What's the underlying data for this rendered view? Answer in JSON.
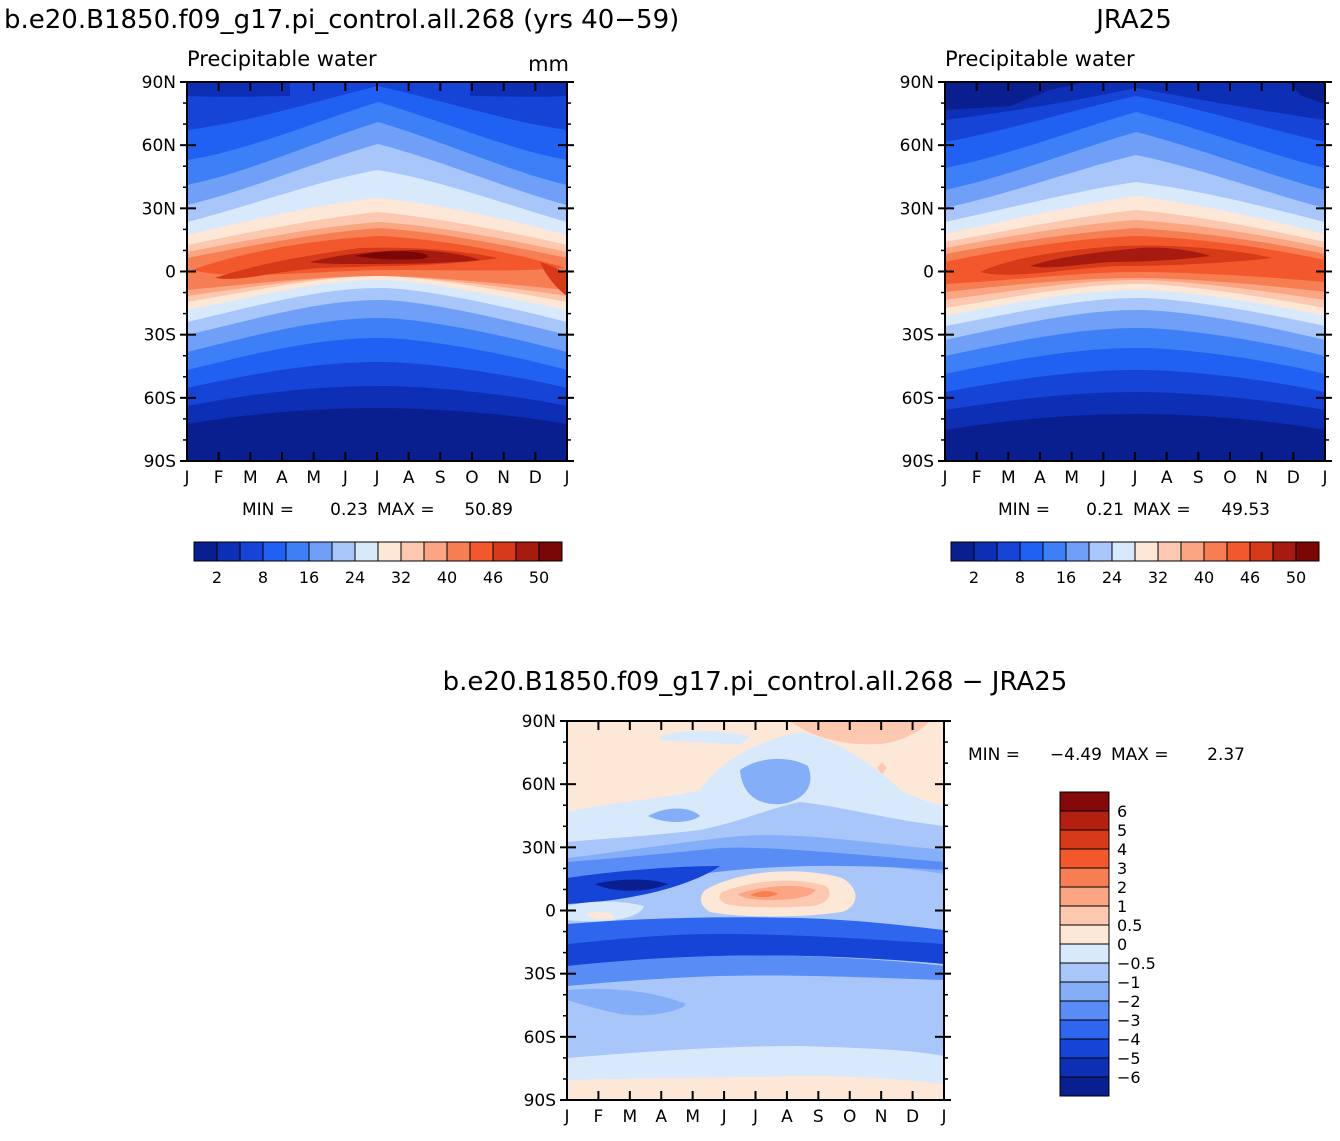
{
  "chart_data": [
    {
      "type": "heatmap",
      "title": "b.e20.B1850.f09_g17.pi_control.all.268 (yrs 40−59)",
      "subtitle": "Precipitable water",
      "units": "mm",
      "x_ticks": [
        "J",
        "F",
        "M",
        "A",
        "M",
        "J",
        "J",
        "A",
        "S",
        "O",
        "N",
        "D",
        "J"
      ],
      "y_ticks": [
        "90N",
        "60N",
        "30N",
        "0",
        "30S",
        "60S",
        "90S"
      ],
      "stats": {
        "min_label": "MIN =",
        "min": "0.23",
        "max_label": "MAX =",
        "max": "50.89"
      },
      "colorbar": {
        "orientation": "horizontal",
        "colors": [
          "#0a1f8f",
          "#0d2fb5",
          "#1544d6",
          "#2060f2",
          "#3d7ff7",
          "#6f9ff7",
          "#a8c6f9",
          "#d9e9fc",
          "#fde7d6",
          "#fcc8b0",
          "#fba583",
          "#f77e52",
          "#f2582c",
          "#d63a18",
          "#a61a10",
          "#7a0606"
        ],
        "labels": [
          "2",
          "8",
          "16",
          "24",
          "32",
          "40",
          "46",
          "50"
        ]
      }
    },
    {
      "type": "heatmap",
      "title": "JRA25",
      "subtitle": "Precipitable water",
      "x_ticks": [
        "J",
        "F",
        "M",
        "A",
        "M",
        "J",
        "J",
        "A",
        "S",
        "O",
        "N",
        "D",
        "J"
      ],
      "y_ticks": [
        "90N",
        "60N",
        "30N",
        "0",
        "30S",
        "60S",
        "90S"
      ],
      "stats": {
        "min_label": "MIN =",
        "min": "0.21",
        "max_label": "MAX =",
        "max": "49.53"
      },
      "colorbar": {
        "orientation": "horizontal",
        "colors": [
          "#0a1f8f",
          "#0d2fb5",
          "#1544d6",
          "#2060f2",
          "#3d7ff7",
          "#6f9ff7",
          "#a8c6f9",
          "#d9e9fc",
          "#fde7d6",
          "#fcc8b0",
          "#fba583",
          "#f77e52",
          "#f2582c",
          "#d63a18",
          "#a61a10",
          "#7a0606"
        ],
        "labels": [
          "2",
          "8",
          "16",
          "24",
          "32",
          "40",
          "46",
          "50"
        ]
      }
    },
    {
      "type": "heatmap",
      "title": "b.e20.B1850.f09_g17.pi_control.all.268 − JRA25",
      "x_ticks": [
        "J",
        "F",
        "M",
        "A",
        "M",
        "J",
        "J",
        "A",
        "S",
        "O",
        "N",
        "D",
        "J"
      ],
      "y_ticks": [
        "90N",
        "60N",
        "30N",
        "0",
        "30S",
        "60S",
        "90S"
      ],
      "stats": {
        "min_label": "MIN =",
        "min": "−4.49",
        "max_label": "MAX =",
        "max": "2.37"
      },
      "colorbar": {
        "orientation": "vertical",
        "colors": [
          "#840a0a",
          "#b3200f",
          "#d63a18",
          "#f2582c",
          "#f77e52",
          "#fba583",
          "#fcc8b0",
          "#fde7d6",
          "#d9e9fc",
          "#a8c6f9",
          "#85aef8",
          "#5a8cf5",
          "#2e66ee",
          "#1544d6",
          "#0d2fb5",
          "#0a1f8f"
        ],
        "labels": [
          "6",
          "5",
          "4",
          "3",
          "2",
          "1",
          "0.5",
          "0",
          "−0.5",
          "−1",
          "−2",
          "−3",
          "−4",
          "−5",
          "−6"
        ]
      }
    }
  ]
}
